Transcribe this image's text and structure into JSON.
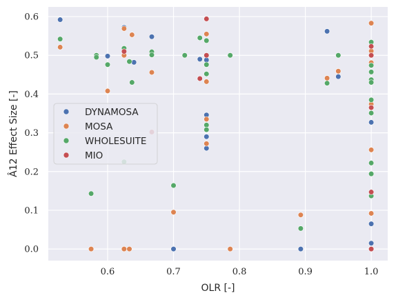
{
  "chart_data": {
    "type": "scatter",
    "xlabel": "OLR [-]",
    "ylabel": "Â12 Effect Size [-]",
    "xlim": [
      0.51,
      1.025
    ],
    "ylim": [
      -0.03,
      0.625
    ],
    "x_ticks": [
      "0.6",
      "0.7",
      "0.8",
      "0.9",
      "1.0"
    ],
    "y_ticks": [
      "0.0",
      "0.1",
      "0.2",
      "0.3",
      "0.4",
      "0.5",
      "0.6"
    ],
    "x_tick_values": [
      0.6,
      0.7,
      0.8,
      0.9,
      1.0
    ],
    "y_tick_values": [
      0.0,
      0.1,
      0.2,
      0.3,
      0.4,
      0.5,
      0.6
    ],
    "grid": true,
    "legend_position": "center-left",
    "series": [
      {
        "name": "DYNAMOSA",
        "color": "#4c72b0",
        "points": [
          [
            0.528,
            0.592
          ],
          [
            0.6,
            0.498
          ],
          [
            0.625,
            0.572
          ],
          [
            0.64,
            0.482
          ],
          [
            0.667,
            0.548
          ],
          [
            0.7,
            0.0
          ],
          [
            0.74,
            0.49
          ],
          [
            0.75,
            0.488
          ],
          [
            0.75,
            0.346
          ],
          [
            0.75,
            0.29
          ],
          [
            0.75,
            0.26
          ],
          [
            0.893,
            0.0
          ],
          [
            0.933,
            0.562
          ],
          [
            0.95,
            0.445
          ],
          [
            1.0,
            0.532
          ],
          [
            1.0,
            0.327
          ],
          [
            1.0,
            0.065
          ],
          [
            1.0,
            0.015
          ]
        ]
      },
      {
        "name": "MOSA",
        "color": "#dd8452",
        "points": [
          [
            0.528,
            0.521
          ],
          [
            0.575,
            0.0
          ],
          [
            0.6,
            0.408
          ],
          [
            0.625,
            0.5
          ],
          [
            0.625,
            0.569
          ],
          [
            0.625,
            0.0
          ],
          [
            0.633,
            0.0
          ],
          [
            0.637,
            0.553
          ],
          [
            0.667,
            0.456
          ],
          [
            0.7,
            0.095
          ],
          [
            0.75,
            0.555
          ],
          [
            0.75,
            0.432
          ],
          [
            0.75,
            0.335
          ],
          [
            0.75,
            0.272
          ],
          [
            0.786,
            0.0
          ],
          [
            0.893,
            0.088
          ],
          [
            0.933,
            0.441
          ],
          [
            0.95,
            0.459
          ],
          [
            1.0,
            0.583
          ],
          [
            1.0,
            0.511
          ],
          [
            1.0,
            0.481
          ],
          [
            1.0,
            0.374
          ],
          [
            1.0,
            0.256
          ],
          [
            1.0,
            0.092
          ]
        ]
      },
      {
        "name": "WHOLESUITE",
        "color": "#55a868",
        "points": [
          [
            0.528,
            0.542
          ],
          [
            0.583,
            0.5
          ],
          [
            0.583,
            0.495
          ],
          [
            0.6,
            0.476
          ],
          [
            0.625,
            0.518
          ],
          [
            0.633,
            0.484
          ],
          [
            0.637,
            0.43
          ],
          [
            0.667,
            0.509
          ],
          [
            0.667,
            0.501
          ],
          [
            0.7,
            0.164
          ],
          [
            0.717,
            0.5
          ],
          [
            0.74,
            0.545
          ],
          [
            0.75,
            0.538
          ],
          [
            0.75,
            0.476
          ],
          [
            0.75,
            0.452
          ],
          [
            0.75,
            0.32
          ],
          [
            0.75,
            0.308
          ],
          [
            0.786,
            0.5
          ],
          [
            0.893,
            0.053
          ],
          [
            0.933,
            0.428
          ],
          [
            0.95,
            0.5
          ],
          [
            1.0,
            0.534
          ],
          [
            1.0,
            0.474
          ],
          [
            1.0,
            0.457
          ],
          [
            1.0,
            0.437
          ],
          [
            1.0,
            0.43
          ],
          [
            1.0,
            0.385
          ],
          [
            1.0,
            0.351
          ],
          [
            1.0,
            0.222
          ],
          [
            1.0,
            0.194
          ],
          [
            1.0,
            0.137
          ],
          [
            0.575,
            0.143
          ],
          [
            0.625,
            0.225
          ]
        ]
      },
      {
        "name": "MIO",
        "color": "#c44e52",
        "points": [
          [
            0.625,
            0.51
          ],
          [
            0.667,
            0.302
          ],
          [
            0.74,
            0.44
          ],
          [
            0.75,
            0.594
          ],
          [
            0.75,
            0.5
          ],
          [
            1.0,
            0.523
          ],
          [
            1.0,
            0.5
          ],
          [
            1.0,
            0.365
          ],
          [
            1.0,
            0.147
          ],
          [
            1.0,
            0.0
          ]
        ]
      }
    ]
  }
}
